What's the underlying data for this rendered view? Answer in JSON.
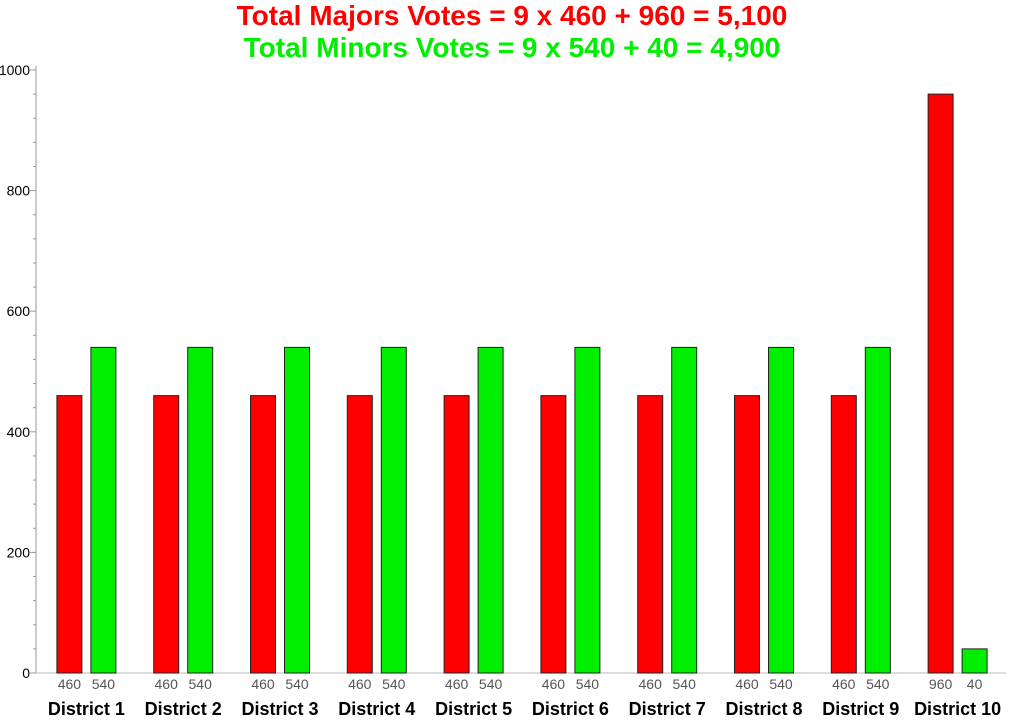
{
  "chart_data": {
    "type": "bar",
    "title": "Total Majors Votes = 9 x 460 + 960 = 5,100",
    "subtitle": "Total Minors Votes = 9 x 540 + 40 = 4,900",
    "title_color": "#ff0000",
    "subtitle_color": "#00ee00",
    "categories": [
      "District 1",
      "District 2",
      "District 3",
      "District 4",
      "District 5",
      "District 6",
      "District 7",
      "District 8",
      "District 9",
      "District 10"
    ],
    "series": [
      {
        "color": "#ff0000",
        "values": [
          460,
          460,
          460,
          460,
          460,
          460,
          460,
          460,
          460,
          960
        ]
      },
      {
        "color": "#00ee00",
        "values": [
          540,
          540,
          540,
          540,
          540,
          540,
          540,
          540,
          540,
          40
        ]
      }
    ],
    "ylim": [
      0,
      1000
    ],
    "yticks": [
      0,
      200,
      400,
      600,
      800,
      1000
    ],
    "grid": false,
    "data_labels": true
  }
}
